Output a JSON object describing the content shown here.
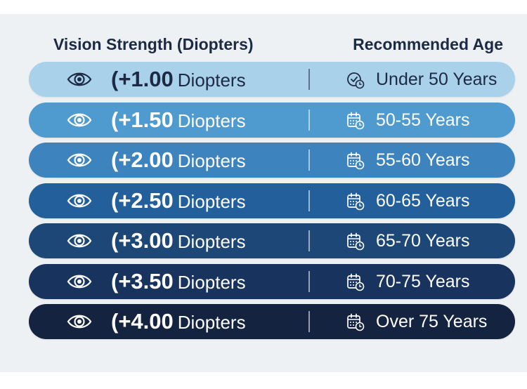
{
  "header": {
    "left_label": "Vision Strength (Diopters)",
    "right_label": "Recommended Age"
  },
  "rows": [
    {
      "strength": "(+1.00",
      "unit": "Diopters",
      "age": "Under 50 Years",
      "icon": "clock-check-icon",
      "bg": "#a9d1ea",
      "fg": "#1d2a44",
      "icon_color": "#1d2a44"
    },
    {
      "strength": "(+1.50",
      "unit": "Diopters",
      "age": "50-55 Years",
      "icon": "calendar-clock-icon",
      "bg": "#4f9bcf",
      "fg": "#ffffff",
      "icon_color": "#ffffff"
    },
    {
      "strength": "(+2.00",
      "unit": "Diopters",
      "age": "55-60 Years",
      "icon": "calendar-clock-icon",
      "bg": "#3d83be",
      "fg": "#ffffff",
      "icon_color": "#ffffff"
    },
    {
      "strength": "(+2.50",
      "unit": "Diopters",
      "age": "60-65 Years",
      "icon": "calendar-clock-icon",
      "bg": "#235f9a",
      "fg": "#ffffff",
      "icon_color": "#ffffff"
    },
    {
      "strength": "(+3.00",
      "unit": "Diopters",
      "age": "65-70 Years",
      "icon": "calendar-clock-icon",
      "bg": "#1c4777",
      "fg": "#ffffff",
      "icon_color": "#ffffff"
    },
    {
      "strength": "(+3.50",
      "unit": "Diopters",
      "age": "70-75 Years",
      "icon": "calendar-clock-icon",
      "bg": "#17335e",
      "fg": "#ffffff",
      "icon_color": "#ffffff"
    },
    {
      "strength": "(+4.00",
      "unit": "Diopters",
      "age": "Over 75 Years",
      "icon": "calendar-clock-icon",
      "bg": "#14233f",
      "fg": "#ffffff",
      "icon_color": "#ffffff"
    }
  ]
}
